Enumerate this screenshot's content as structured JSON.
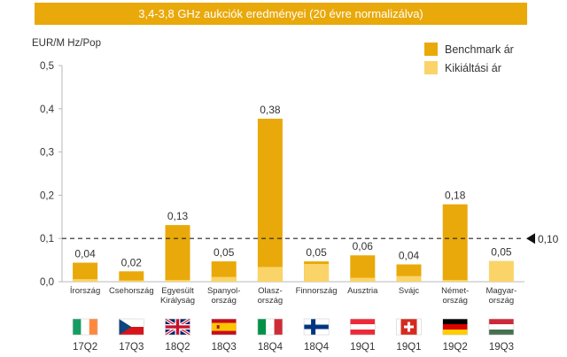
{
  "chart_data": {
    "type": "bar",
    "title": "3,4-3,8 GHz aukciók eredményei (20 évre normalizálva)",
    "ylabel": "EUR/M Hz/Pop",
    "ylim": [
      0,
      0.5
    ],
    "yticks": [
      "0,0",
      "0,1",
      "0,2",
      "0,3",
      "0,4",
      "0,5"
    ],
    "grid": false,
    "legend_position": "top-right",
    "categories": [
      {
        "label": [
          "Írország"
        ],
        "quarter": "17Q2",
        "flag": "ireland-flag"
      },
      {
        "label": [
          "Csehország"
        ],
        "quarter": "17Q3",
        "flag": "czech-flag"
      },
      {
        "label": [
          "Egyesült",
          "Királyság"
        ],
        "quarter": "18Q2",
        "flag": "uk-flag"
      },
      {
        "label": [
          "Spanyol-",
          "ország"
        ],
        "quarter": "18Q3",
        "flag": "spain-flag"
      },
      {
        "label": [
          "Olasz-",
          "ország"
        ],
        "quarter": "18Q4",
        "flag": "italy-flag"
      },
      {
        "label": [
          "Finnország"
        ],
        "quarter": "18Q4",
        "flag": "finland-flag"
      },
      {
        "label": [
          "Ausztria"
        ],
        "quarter": "19Q1",
        "flag": "austria-flag"
      },
      {
        "label": [
          "Svájc"
        ],
        "quarter": "19Q1",
        "flag": "switzerland-flag"
      },
      {
        "label": [
          "Német-",
          "ország"
        ],
        "quarter": "19Q2",
        "flag": "germany-flag"
      },
      {
        "label": [
          "Magyar-",
          "ország"
        ],
        "quarter": "19Q3",
        "flag": "hungary-flag"
      }
    ],
    "series": [
      {
        "name": "Benchmark ár",
        "color": "#E9A90A",
        "values": [
          0.044,
          0.024,
          0.131,
          0.047,
          0.377,
          0.047,
          0.061,
          0.04,
          0.179,
          null
        ]
      },
      {
        "name": "Kikiáltási ár",
        "color": "#FAD468",
        "values": [
          0.006,
          0.003,
          0.004,
          0.011,
          0.034,
          0.041,
          0.009,
          0.013,
          0.004,
          0.048
        ]
      }
    ],
    "data_labels": [
      "0,04",
      "0,02",
      "0,13",
      "0,05",
      "0,38",
      "0,05",
      "0,06",
      "0,04",
      "0,18",
      "0,05"
    ],
    "reference_line": {
      "value": 0.1,
      "label": "0,10",
      "style": "dashed"
    }
  }
}
